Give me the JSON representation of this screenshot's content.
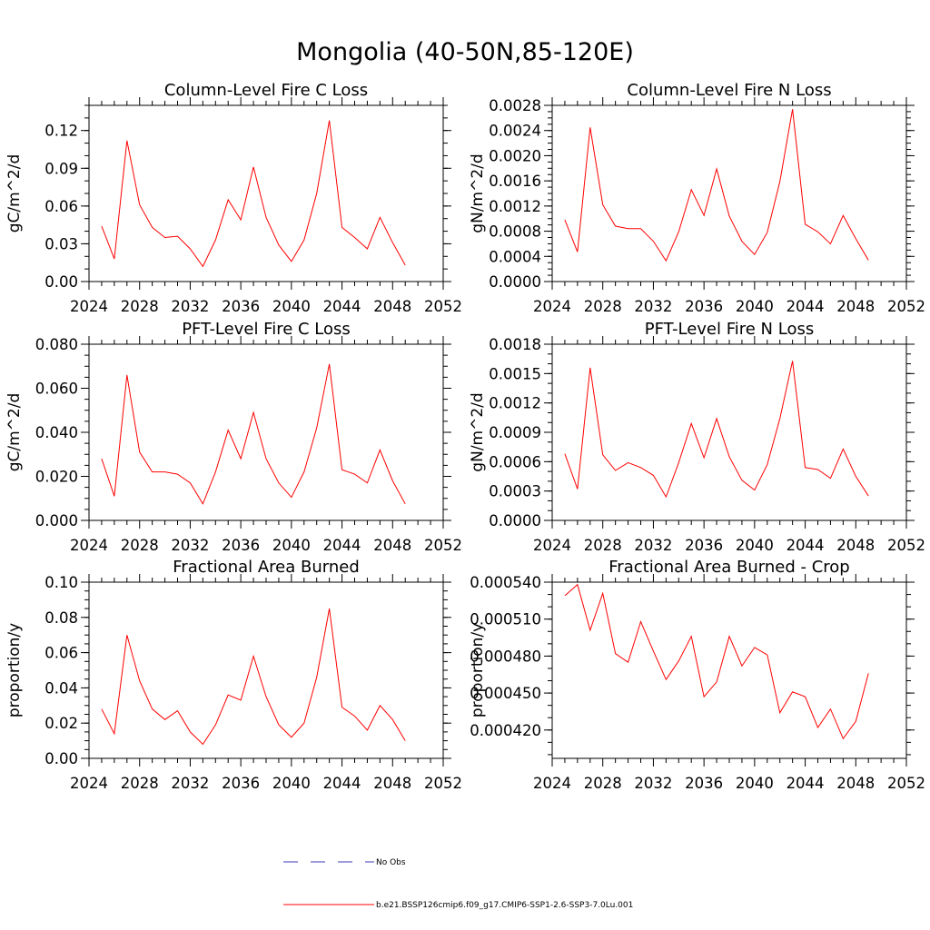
{
  "title": "Mongolia (40-50N,85-120E)",
  "legend": [
    {
      "label": "No Obs",
      "color": "#3a3ab8",
      "dash": true
    },
    {
      "label": "b.e21.BSSP126cmip6.f09_g17.CMIP6-SSP1-2.6-SSP3-7.0Lu.001",
      "color": "#ff0000",
      "dash": false
    }
  ],
  "chart_data": [
    {
      "type": "line",
      "title": "Column-Level Fire C Loss",
      "ylabel": "gC/m^2/d",
      "xlim": [
        2024,
        2052
      ],
      "ylim": [
        0,
        0.14
      ],
      "xticks": [
        "2024",
        "2028",
        "2032",
        "2036",
        "2040",
        "2044",
        "2048",
        "2052"
      ],
      "yticks": [
        "0.00",
        "0.03",
        "0.06",
        "0.09",
        "0.12"
      ],
      "yminor": 0.01,
      "x": [
        2025,
        2026,
        2027,
        2028,
        2029,
        2030,
        2031,
        2032,
        2033,
        2034,
        2035,
        2036,
        2037,
        2038,
        2039,
        2040,
        2041,
        2042,
        2043,
        2044,
        2045,
        2046,
        2047,
        2048,
        2049
      ],
      "series": [
        {
          "color": "#ff0000",
          "values": [
            0.044,
            0.018,
            0.112,
            0.061,
            0.043,
            0.035,
            0.036,
            0.026,
            0.012,
            0.033,
            0.065,
            0.049,
            0.091,
            0.051,
            0.029,
            0.016,
            0.033,
            0.07,
            0.128,
            0.043,
            0.035,
            0.026,
            0.051,
            0.031,
            0.013
          ]
        }
      ]
    },
    {
      "type": "line",
      "title": "Column-Level Fire N Loss",
      "ylabel": "gN/m^2/d",
      "xlim": [
        2024,
        2052
      ],
      "ylim": [
        0,
        0.0028
      ],
      "xticks": [
        "2024",
        "2028",
        "2032",
        "2036",
        "2040",
        "2044",
        "2048",
        "2052"
      ],
      "yticks": [
        "0.0000",
        "0.0004",
        "0.0008",
        "0.0012",
        "0.0016",
        "0.0020",
        "0.0024",
        "0.0028"
      ],
      "yminor": 0.0001,
      "x": [
        2025,
        2026,
        2027,
        2028,
        2029,
        2030,
        2031,
        2032,
        2033,
        2034,
        2035,
        2036,
        2037,
        2038,
        2039,
        2040,
        2041,
        2042,
        2043,
        2044,
        2045,
        2046,
        2047,
        2048,
        2049
      ],
      "series": [
        {
          "color": "#ff0000",
          "values": [
            0.00098,
            0.00047,
            0.00245,
            0.00122,
            0.00088,
            0.00084,
            0.00084,
            0.00064,
            0.00033,
            0.00079,
            0.00146,
            0.00105,
            0.00179,
            0.00104,
            0.00064,
            0.00043,
            0.00078,
            0.00159,
            0.00274,
            0.00091,
            0.00079,
            0.0006,
            0.00105,
            0.00068,
            0.00034
          ]
        }
      ]
    },
    {
      "type": "line",
      "title": "PFT-Level Fire C Loss",
      "ylabel": "gC/m^2/d",
      "xlim": [
        2024,
        2052
      ],
      "ylim": [
        0,
        0.08
      ],
      "xticks": [
        "2024",
        "2028",
        "2032",
        "2036",
        "2040",
        "2044",
        "2048",
        "2052"
      ],
      "yticks": [
        "0.000",
        "0.020",
        "0.040",
        "0.060",
        "0.080"
      ],
      "yminor": 0.005,
      "x": [
        2025,
        2026,
        2027,
        2028,
        2029,
        2030,
        2031,
        2032,
        2033,
        2034,
        2035,
        2036,
        2037,
        2038,
        2039,
        2040,
        2041,
        2042,
        2043,
        2044,
        2045,
        2046,
        2047,
        2048,
        2049
      ],
      "series": [
        {
          "color": "#ff0000",
          "values": [
            0.028,
            0.011,
            0.066,
            0.031,
            0.022,
            0.022,
            0.021,
            0.017,
            0.0075,
            0.022,
            0.041,
            0.028,
            0.049,
            0.028,
            0.017,
            0.0105,
            0.022,
            0.042,
            0.071,
            0.023,
            0.021,
            0.017,
            0.032,
            0.018,
            0.0075
          ]
        }
      ]
    },
    {
      "type": "line",
      "title": "PFT-Level Fire N Loss",
      "ylabel": "gN/m^2/d",
      "xlim": [
        2024,
        2052
      ],
      "ylim": [
        0,
        0.0018
      ],
      "xticks": [
        "2024",
        "2028",
        "2032",
        "2036",
        "2040",
        "2044",
        "2048",
        "2052"
      ],
      "yticks": [
        "0.0000",
        "0.0003",
        "0.0006",
        "0.0009",
        "0.0012",
        "0.0015",
        "0.0018"
      ],
      "yminor": 0.0001,
      "x": [
        2025,
        2026,
        2027,
        2028,
        2029,
        2030,
        2031,
        2032,
        2033,
        2034,
        2035,
        2036,
        2037,
        2038,
        2039,
        2040,
        2041,
        2042,
        2043,
        2044,
        2045,
        2046,
        2047,
        2048,
        2049
      ],
      "series": [
        {
          "color": "#ff0000",
          "values": [
            0.00068,
            0.00032,
            0.00156,
            0.00067,
            0.00051,
            0.00059,
            0.00054,
            0.00046,
            0.00024,
            0.00059,
            0.00099,
            0.00064,
            0.00104,
            0.00065,
            0.00041,
            0.00031,
            0.00057,
            0.00104,
            0.00163,
            0.00054,
            0.00052,
            0.00043,
            0.00073,
            0.00045,
            0.00025
          ]
        }
      ]
    },
    {
      "type": "line",
      "title": "Fractional Area Burned",
      "ylabel": "proportion/y",
      "xlim": [
        2024,
        2052
      ],
      "ylim": [
        0,
        0.1
      ],
      "xticks": [
        "2024",
        "2028",
        "2032",
        "2036",
        "2040",
        "2044",
        "2048",
        "2052"
      ],
      "yticks": [
        "0.00",
        "0.02",
        "0.04",
        "0.06",
        "0.08",
        "0.10"
      ],
      "yminor": 0.005,
      "x": [
        2025,
        2026,
        2027,
        2028,
        2029,
        2030,
        2031,
        2032,
        2033,
        2034,
        2035,
        2036,
        2037,
        2038,
        2039,
        2040,
        2041,
        2042,
        2043,
        2044,
        2045,
        2046,
        2047,
        2048,
        2049
      ],
      "series": [
        {
          "color": "#ff0000",
          "values": [
            0.028,
            0.014,
            0.07,
            0.044,
            0.028,
            0.022,
            0.027,
            0.015,
            0.008,
            0.019,
            0.036,
            0.033,
            0.058,
            0.035,
            0.019,
            0.012,
            0.02,
            0.046,
            0.085,
            0.029,
            0.024,
            0.016,
            0.03,
            0.022,
            0.01
          ]
        }
      ]
    },
    {
      "type": "line",
      "title": "Fractional Area Burned - Crop",
      "ylabel": "proportion/y",
      "xlim": [
        2024,
        2052
      ],
      "ylim": [
        0.000397,
        0.00054
      ],
      "xticks": [
        "2024",
        "2028",
        "2032",
        "2036",
        "2040",
        "2044",
        "2048",
        "2052"
      ],
      "yticks": [
        "0.000420",
        "0.000450",
        "0.000480",
        "0.000510",
        "0.000540"
      ],
      "yminor": 1e-05,
      "x": [
        2025,
        2026,
        2027,
        2028,
        2029,
        2030,
        2031,
        2032,
        2033,
        2034,
        2035,
        2036,
        2037,
        2038,
        2039,
        2040,
        2041,
        2042,
        2043,
        2044,
        2045,
        2046,
        2047,
        2048,
        2049
      ],
      "series": [
        {
          "color": "#ff0000",
          "values": [
            0.000529,
            0.000538,
            0.000501,
            0.000531,
            0.000482,
            0.000475,
            0.000508,
            0.000484,
            0.000461,
            0.000476,
            0.000496,
            0.000447,
            0.000459,
            0.000496,
            0.000472,
            0.000487,
            0.000481,
            0.000434,
            0.000451,
            0.000447,
            0.000422,
            0.000437,
            0.000413,
            0.000427,
            0.000466
          ]
        }
      ]
    }
  ]
}
